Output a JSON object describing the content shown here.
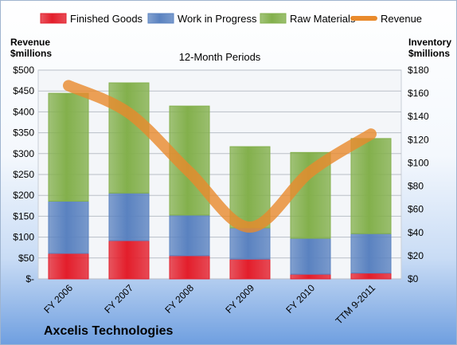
{
  "chart_data": {
    "type": "bar",
    "title": "12-Month Periods",
    "company": "Axcelis Technologies",
    "categories": [
      "FY 2006",
      "FY 2007",
      "FY 2008",
      "FY 2009",
      "FY 2010",
      "TTM 9-2011"
    ],
    "stacked": true,
    "series": [
      {
        "name": "Finished Goods",
        "axis": "right",
        "color": "#e31e2b",
        "values": [
          22,
          33,
          20,
          17,
          4,
          5
        ]
      },
      {
        "name": "Work in Progress",
        "axis": "right",
        "color": "#5a82c0",
        "values": [
          45,
          41,
          35,
          27,
          31,
          34
        ]
      },
      {
        "name": "Raw Materials",
        "axis": "right",
        "color": "#83b04c",
        "values": [
          93,
          95,
          94,
          70,
          74,
          82
        ]
      },
      {
        "name": "Revenue",
        "axis": "left",
        "type": "line",
        "color": "#e98a2c",
        "values": [
          463,
          397,
          256,
          124,
          257,
          347
        ]
      }
    ],
    "left_axis": {
      "label": "Revenue\n$millions",
      "lines": [
        "Revenue",
        "$millions"
      ],
      "ylim": [
        0,
        500
      ],
      "ticks": [
        "$-",
        "$50",
        "$100",
        "$150",
        "$200",
        "$250",
        "$300",
        "$350",
        "$400",
        "$450",
        "$500"
      ]
    },
    "right_axis": {
      "label": "Inventory\n$millions",
      "lines": [
        "Inventory",
        "$millions"
      ],
      "ylim": [
        0,
        180
      ],
      "ticks": [
        "$0",
        "$20",
        "$40",
        "$60",
        "$80",
        "$100",
        "$120",
        "$140",
        "$160",
        "$180"
      ]
    },
    "legend": {
      "position": "top",
      "entries": [
        "Finished Goods",
        "Work in Progress",
        "Raw Materials",
        "Revenue"
      ]
    },
    "grid": true
  }
}
